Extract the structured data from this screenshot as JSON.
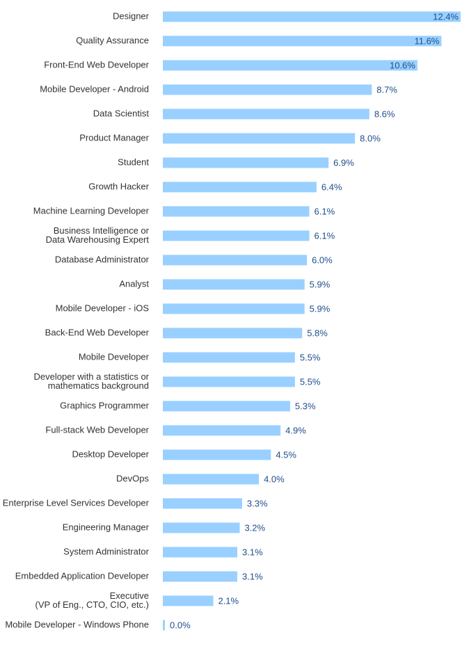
{
  "chart_data": {
    "type": "bar",
    "orientation": "horizontal",
    "title": "",
    "xlabel": "",
    "ylabel": "",
    "bar_color": "#99d0ff",
    "value_label_color": "#1f4e8c",
    "category_label_color": "#333333",
    "grid": false,
    "legend": "none",
    "xlim": [
      0,
      12.4
    ],
    "categories": [
      [
        "Designer"
      ],
      [
        "Quality Assurance"
      ],
      [
        "Front-End Web Developer"
      ],
      [
        "Mobile Developer - Android"
      ],
      [
        "Data Scientist"
      ],
      [
        "Product Manager"
      ],
      [
        "Student"
      ],
      [
        "Growth Hacker"
      ],
      [
        "Machine Learning Developer"
      ],
      [
        "Business Intelligence or",
        "Data Warehousing Expert"
      ],
      [
        "Database Administrator"
      ],
      [
        "Analyst"
      ],
      [
        "Mobile Developer - iOS"
      ],
      [
        "Back-End Web Developer"
      ],
      [
        "Mobile Developer"
      ],
      [
        "Developer with a statistics or",
        "mathematics background"
      ],
      [
        "Graphics Programmer"
      ],
      [
        "Full-stack Web Developer"
      ],
      [
        "Desktop Developer"
      ],
      [
        "DevOps"
      ],
      [
        "Enterprise Level Services Developer"
      ],
      [
        "Engineering Manager"
      ],
      [
        "System Administrator"
      ],
      [
        "Embedded Application Developer"
      ],
      [
        "Executive",
        "(VP of Eng., CTO, CIO, etc.)"
      ],
      [
        "Mobile Developer - Windows Phone"
      ]
    ],
    "values": [
      12.4,
      11.6,
      10.6,
      8.7,
      8.6,
      8.0,
      6.9,
      6.4,
      6.1,
      6.1,
      6.0,
      5.9,
      5.9,
      5.8,
      5.5,
      5.5,
      5.3,
      4.9,
      4.5,
      4.0,
      3.3,
      3.2,
      3.1,
      3.1,
      2.1,
      0.0
    ],
    "value_labels": [
      "12.4%",
      "11.6%",
      "10.6%",
      "8.7%",
      "8.6%",
      "8.0%",
      "6.9%",
      "6.4%",
      "6.1%",
      "6.1%",
      "6.0%",
      "5.9%",
      "5.9%",
      "5.8%",
      "5.5%",
      "5.5%",
      "5.3%",
      "4.9%",
      "4.5%",
      "4.0%",
      "3.3%",
      "3.2%",
      "3.1%",
      "3.1%",
      "2.1%",
      "0.0%"
    ]
  }
}
